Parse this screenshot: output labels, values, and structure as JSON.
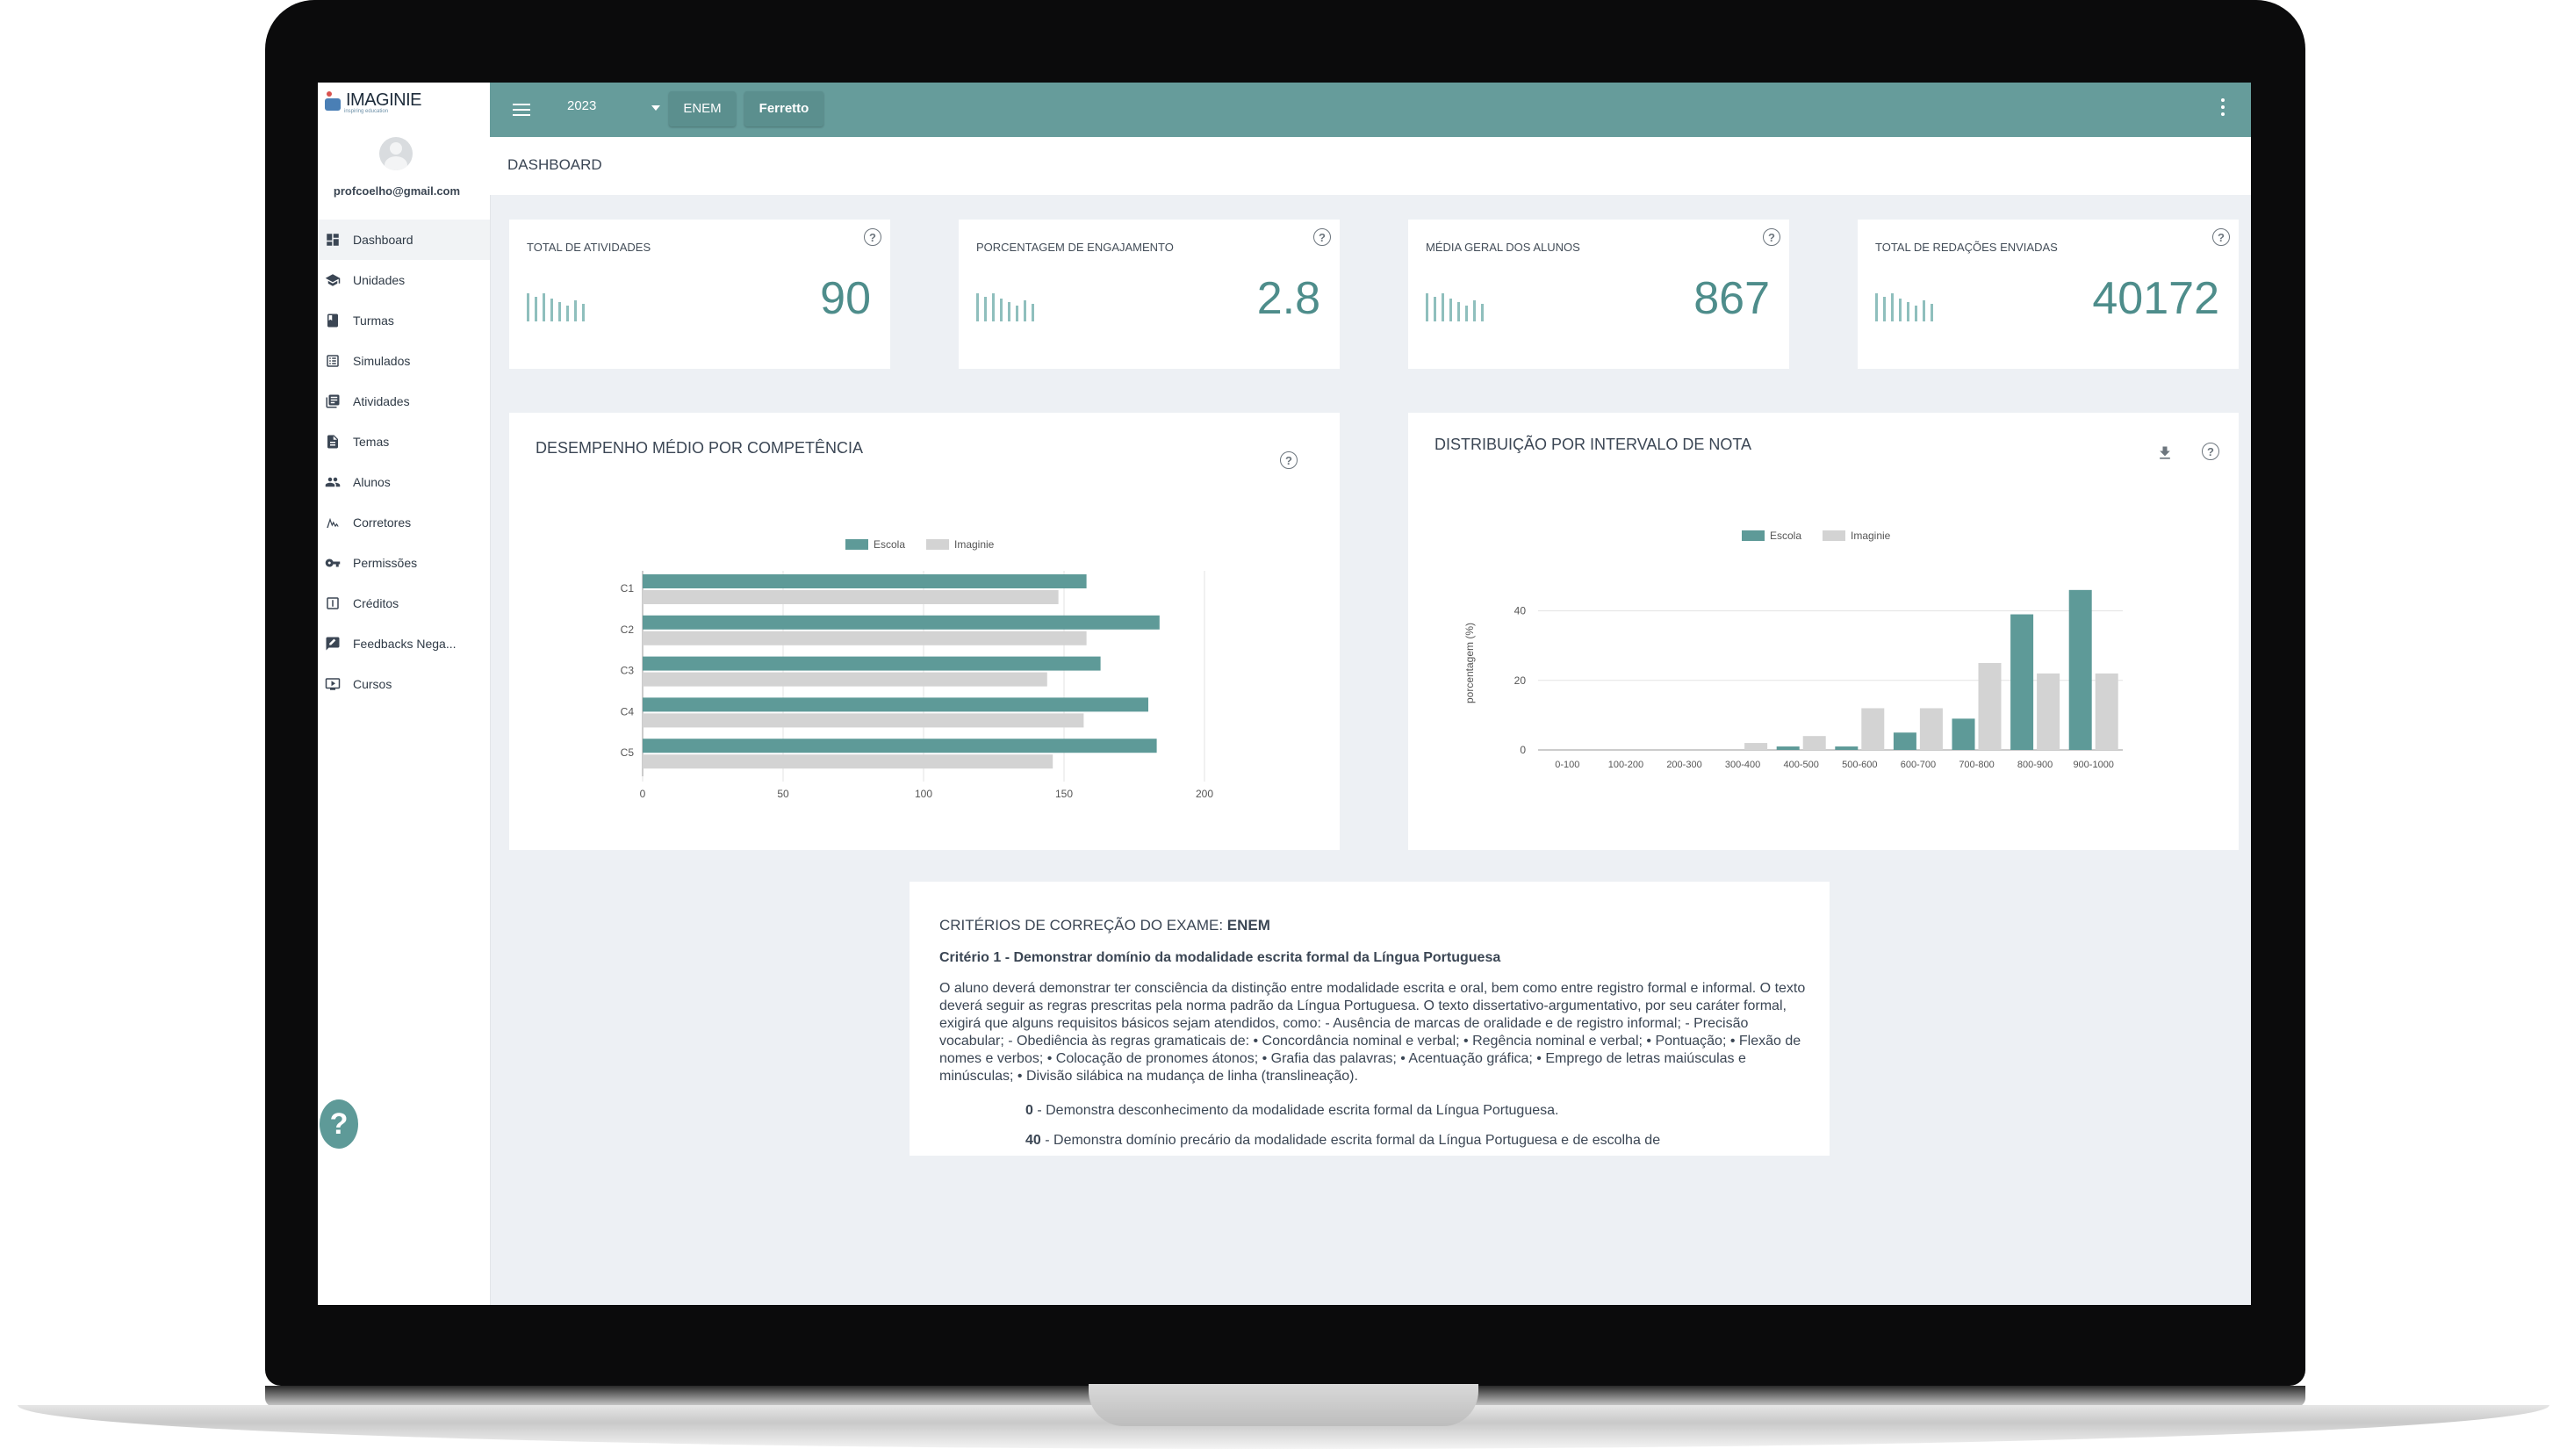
{
  "sidebar": {
    "logo_text": "IMAGINIE",
    "logo_sub": "inspiring education",
    "email": "profcoelho@gmail.com",
    "items": [
      {
        "label": "Dashboard",
        "icon": "dashboard-icon"
      },
      {
        "label": "Unidades",
        "icon": "school-icon"
      },
      {
        "label": "Turmas",
        "icon": "book-icon"
      },
      {
        "label": "Simulados",
        "icon": "list-icon"
      },
      {
        "label": "Atividades",
        "icon": "library-icon"
      },
      {
        "label": "Temas",
        "icon": "document-icon"
      },
      {
        "label": "Alunos",
        "icon": "people-icon"
      },
      {
        "label": "Corretores",
        "icon": "signature-icon"
      },
      {
        "label": "Permissões",
        "icon": "key-icon"
      },
      {
        "label": "Créditos",
        "icon": "credit-icon"
      },
      {
        "label": "Feedbacks Nega...",
        "icon": "feedback-icon"
      },
      {
        "label": "Cursos",
        "icon": "video-icon"
      }
    ],
    "help": "?"
  },
  "topbar": {
    "year": "2023",
    "exam_button": "ENEM",
    "school_button": "Ferretto"
  },
  "page": {
    "title": "DASHBOARD"
  },
  "stats": [
    {
      "title": "TOTAL DE ATIVIDADES",
      "value": "90"
    },
    {
      "title": "PORCENTAGEM DE ENGAJAMENTO",
      "value": "2.8"
    },
    {
      "title": "MÉDIA GERAL DOS ALUNOS",
      "value": "867"
    },
    {
      "title": "TOTAL DE REDAÇÕES ENVIADAS",
      "value": "40172"
    }
  ],
  "colors": {
    "accent": "#669c9b",
    "escola": "#5e9a98",
    "imaginie": "#d3d3d3"
  },
  "chart_data": [
    {
      "type": "bar",
      "orientation": "horizontal",
      "title": "DESEMPENHO MÉDIO POR COMPETÊNCIA",
      "categories": [
        "C1",
        "C2",
        "C3",
        "C4",
        "C5"
      ],
      "series": [
        {
          "name": "Escola",
          "values": [
            158,
            184,
            163,
            180,
            183
          ]
        },
        {
          "name": "Imaginie",
          "values": [
            148,
            158,
            144,
            157,
            146
          ]
        }
      ],
      "xlim": [
        0,
        200
      ],
      "xticks": [
        "0",
        "50",
        "100",
        "150",
        "200"
      ],
      "legend": "top"
    },
    {
      "type": "bar",
      "title": "DISTRIBUIÇÃO POR INTERVALO DE NOTA",
      "ylabel": "porcentagem (%)",
      "categories": [
        "0-100",
        "100-200",
        "200-300",
        "300-400",
        "400-500",
        "500-600",
        "600-700",
        "700-800",
        "800-900",
        "900-1000"
      ],
      "series": [
        {
          "name": "Escola",
          "values": [
            0,
            0,
            0,
            0,
            1,
            1,
            5,
            9,
            39,
            46
          ]
        },
        {
          "name": "Imaginie",
          "values": [
            0,
            0,
            0,
            2,
            4,
            12,
            12,
            25,
            22,
            22
          ]
        }
      ],
      "ylim": [
        0,
        50
      ],
      "yticks": [
        "0",
        "20",
        "40"
      ],
      "legend": "top"
    }
  ],
  "criteria": {
    "heading_prefix": "CRITÉRIOS DE CORREÇÃO DO EXAME: ",
    "heading_exam": "ENEM",
    "criterion_title": "Critério 1 - Demonstrar domínio da modalidade escrita formal da Língua Portuguesa",
    "paragraph": "O aluno deverá demonstrar ter consciência da distinção entre modalidade escrita e oral, bem como entre registro formal e informal. O texto deverá seguir as regras prescritas pela norma padrão da Língua Portuguesa. O texto dissertativo-argumentativo, por seu caráter formal, exigirá que alguns requisitos básicos sejam atendidos, como: - Ausência de marcas de oralidade e de registro informal; - Precisão vocabular; - Obediência às regras gramaticais de: • Concordância nominal e verbal; • Regência nominal e verbal; • Pontuação; • Flexão de nomes e verbos; • Colocação de pronomes átonos; • Grafia das palavras; • Acentuação gráfica; • Emprego de letras maiúsculas e minúsculas; • Divisão silábica na mudança de linha (translineação).",
    "levels": [
      {
        "score": "0",
        "text": " - Demonstra desconhecimento da modalidade escrita formal da Língua Portuguesa."
      },
      {
        "score": "40",
        "text": " - Demonstra domínio precário da modalidade escrita formal da Língua Portuguesa e de escolha de"
      }
    ]
  }
}
